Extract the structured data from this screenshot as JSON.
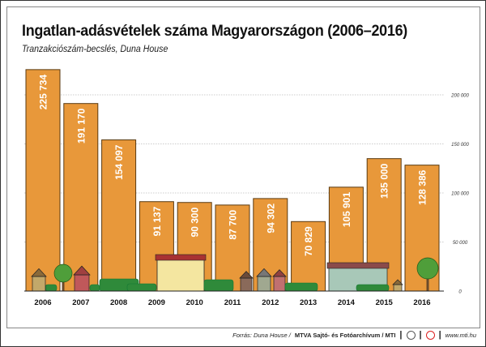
{
  "chart_data": {
    "type": "bar",
    "title": "Ingatlan-adásvételek száma Magyarországon (2006–2016)",
    "subtitle": "Tranzakciószám-becslés, Duna House",
    "categories": [
      "2006",
      "2007",
      "2008",
      "2009",
      "2010",
      "2011",
      "2012",
      "2013",
      "2014",
      "2015",
      "2016"
    ],
    "values": [
      225734,
      191170,
      154097,
      91137,
      90300,
      87700,
      94302,
      70829,
      105901,
      135000,
      128386
    ],
    "data_labels": [
      "225 734",
      "191 170",
      "154 097",
      "91 137",
      "90 300",
      "87 700",
      "94 302",
      "70 829",
      "105 901",
      "135 000",
      "128 386"
    ],
    "ylim": [
      0,
      200000
    ],
    "yticks": [
      0,
      50000,
      100000,
      150000,
      200000
    ],
    "ytick_labels": [
      "0",
      "50 000",
      "100 000",
      "150 000",
      "200 000"
    ],
    "y_axis_position": "right",
    "grid": true,
    "bar_color": "#E8983A"
  },
  "footer": {
    "source_label": "Forrás: Duna House /",
    "agency": "MTVA Sajtó- és Fotóarchívum / MTI",
    "divider": "|",
    "website": "www.mti.hu"
  }
}
